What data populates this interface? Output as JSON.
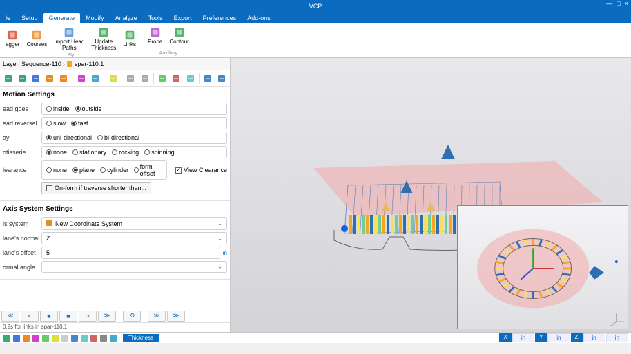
{
  "app": {
    "title": "VCP"
  },
  "menu": {
    "tabs": [
      "le",
      "Setup",
      "Generate",
      "Modify",
      "Analyze",
      "Tools",
      "Export",
      "Preferences",
      "Add-ons"
    ],
    "active_index": 2
  },
  "ribbon": {
    "groups": [
      {
        "label": "Ply",
        "buttons": [
          {
            "label": "agger",
            "color": "#d94b2b"
          },
          {
            "label": "Courses",
            "color": "#e88c2a"
          },
          {
            "label": "Import Head\nPaths",
            "color": "#4a90d9"
          },
          {
            "label": "Update\nThickness",
            "color": "#3aa655"
          },
          {
            "label": "Links",
            "color": "#3aa655"
          }
        ]
      },
      {
        "label": "Auxiliary",
        "buttons": [
          {
            "label": "Probe",
            "color": "#b14fc7"
          },
          {
            "label": "Contour",
            "color": "#3aa655"
          }
        ]
      }
    ]
  },
  "breadcrumb": {
    "prefix": "Layer:",
    "seq": "Sequence-110",
    "item": "spar-110.1"
  },
  "motion": {
    "title": "Motion Settings",
    "rows": [
      {
        "label": "ead goes",
        "opts": [
          "inside",
          "outside"
        ],
        "sel": 1
      },
      {
        "label": "ead reversal",
        "opts": [
          "slow",
          "fast"
        ],
        "sel": 1
      },
      {
        "label": "ay",
        "opts": [
          "uni-directional",
          "bi-directional"
        ],
        "sel": 0
      },
      {
        "label": "otisserie",
        "opts": [
          "none",
          "stationary",
          "rocking",
          "spinning"
        ],
        "sel": 0
      },
      {
        "label": "learance",
        "opts": [
          "none",
          "plane",
          "cylinder",
          "form offset"
        ],
        "sel": 1
      }
    ],
    "view_clearance": {
      "label": "View Clearance",
      "checked": true
    },
    "onform_btn": "On-form if traverse shorter than..."
  },
  "axis": {
    "title": "Axis System Settings",
    "rows": [
      {
        "label": "is system",
        "type": "dropdown",
        "value": "New Coordinate System",
        "icon": "#e88c2a"
      },
      {
        "label": "lane's normal",
        "type": "dropdown",
        "value": "Z"
      },
      {
        "label": "lane's offset",
        "type": "input",
        "value": "5",
        "unit": "in"
      },
      {
        "label": "ormal angle",
        "type": "dropdown",
        "value": ""
      }
    ]
  },
  "status": "0.9s for links in spar-110.1",
  "bottom": {
    "mode": "Thickness",
    "axes": [
      "X",
      "Y",
      "Z"
    ],
    "unit": "in"
  },
  "scene": {
    "plane_color": "#f2a9a9",
    "wire_color": "#5b7fb8",
    "arrow_color": "#2d6fb0",
    "light_arrow": "#e8b864",
    "part_colors": [
      "#f5a623",
      "#2d6fb0",
      "#f6e05e",
      "#6fcf97"
    ],
    "sphere_color": "#1b5fd9"
  },
  "inset_scene": {
    "shell_color": "#f2a9a9",
    "part_colors": [
      "#f5a623",
      "#2d6fb0",
      "#f6e05e"
    ],
    "arrow_color": "#2d6fb0",
    "axis_red": "#d73030",
    "axis_green": "#2fa52f",
    "axis_blue": "#3050d7"
  }
}
